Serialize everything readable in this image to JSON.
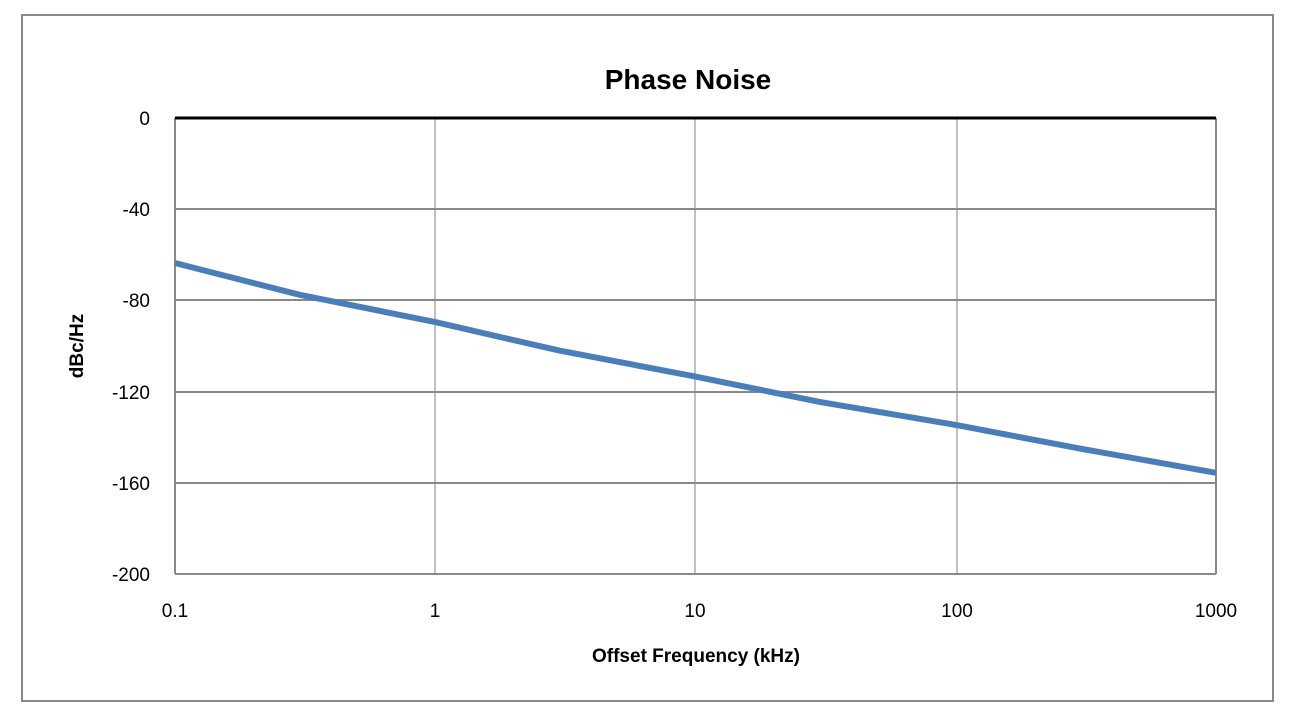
{
  "chart_data": {
    "type": "line",
    "title": "Phase Noise",
    "xlabel": "Offset Frequency (kHz)",
    "ylabel": "dBc/Hz",
    "xscale": "log",
    "xlim": [
      0.1,
      1000
    ],
    "ylim": [
      -200,
      0
    ],
    "x_ticks": [
      "0.1",
      "1",
      "10",
      "100",
      "1000"
    ],
    "y_ticks": [
      "0",
      "-40",
      "-80",
      "-120",
      "-160",
      "-200"
    ],
    "grid": true,
    "legend": null,
    "series": [
      {
        "name": "Phase Noise",
        "color": "#4a7ebb",
        "x": [
          0.1,
          0.3,
          1,
          3,
          10,
          30,
          100,
          300,
          1000
        ],
        "y": [
          -63.6,
          -77.5,
          -89.5,
          -102,
          -113.4,
          -124.5,
          -134.6,
          -145,
          -155.6
        ]
      }
    ]
  },
  "labels": {
    "title": "Phase Noise",
    "xlabel": "Offset Frequency (kHz)",
    "ylabel": "dBc/Hz",
    "x_ticks": [
      "0.1",
      "1",
      "10",
      "100",
      "1000"
    ],
    "y_ticks": [
      "0",
      "-40",
      "-80",
      "-120",
      "-160",
      "-200"
    ]
  }
}
